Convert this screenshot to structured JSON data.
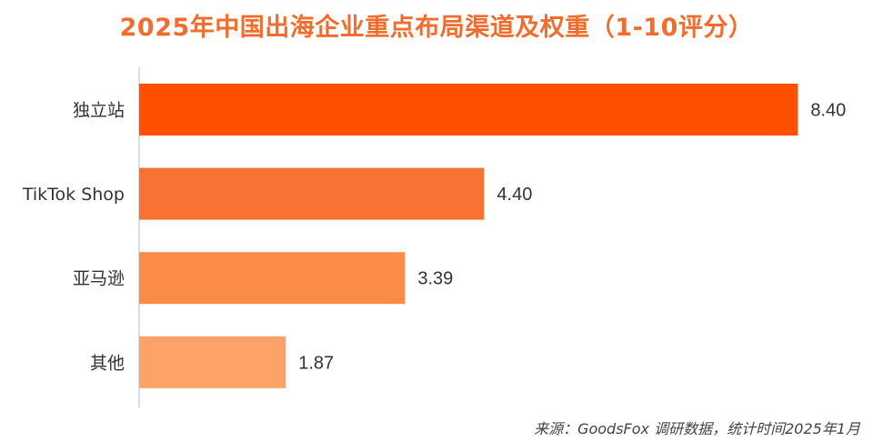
{
  "chart_data": {
    "type": "bar",
    "orientation": "horizontal",
    "title": "2025年中国出海企业重点布局渠道及权重（1-10评分）",
    "categories": [
      "独立站",
      "TikTok Shop",
      "亚马逊",
      "其他"
    ],
    "values": [
      8.4,
      4.4,
      3.39,
      1.87
    ],
    "value_labels": [
      "8.40",
      "4.40",
      "3.39",
      "1.87"
    ],
    "xlim": [
      0,
      8.5
    ],
    "xlabel": "",
    "ylabel": "",
    "grid": false,
    "colors": [
      "#ff5000",
      "#f87333",
      "#fb8c47",
      "#fda369"
    ],
    "source": "来源：GoodsFox 调研数据，统计时间2025年1月"
  }
}
